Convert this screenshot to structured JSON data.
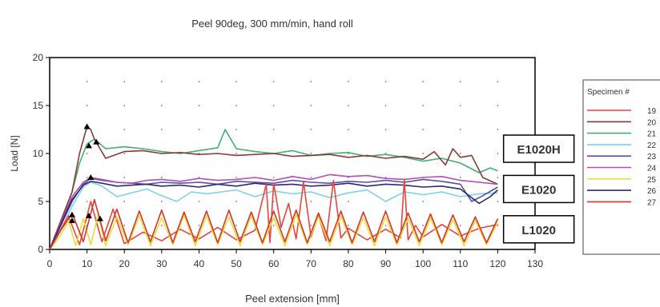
{
  "chart_data": {
    "type": "line",
    "title": "Peel 90deg, 300 mm/min, hand roll",
    "xlabel": "Peel extension [mm]",
    "ylabel": "Load [N]",
    "xlim": [
      0,
      130
    ],
    "ylim": [
      0,
      20
    ],
    "x_ticks": [
      "0",
      "10",
      "20",
      "30",
      "40",
      "50",
      "60",
      "70",
      "80",
      "90",
      "100",
      "110",
      "120",
      "130"
    ],
    "y_ticks": [
      "0",
      "5",
      "10",
      "15",
      "20"
    ],
    "grid": "dotted",
    "legend": {
      "title": "Specimen #",
      "placement": "right",
      "entries": [
        {
          "label": "19",
          "color": "#e8453c"
        },
        {
          "label": "20",
          "color": "#8b3a3a"
        },
        {
          "label": "21",
          "color": "#3cb371"
        },
        {
          "label": "22",
          "color": "#7fd3e6"
        },
        {
          "label": "23",
          "color": "#5a4fa8"
        },
        {
          "label": "24",
          "color": "#b24fb0"
        },
        {
          "label": "25",
          "color": "#e6df3a"
        },
        {
          "label": "26",
          "color": "#2e2a6e"
        },
        {
          "label": "27",
          "color": "#d7342c"
        }
      ]
    },
    "annotations": [
      {
        "text": "E1020H",
        "x": 131,
        "y": 10.5
      },
      {
        "text": "E1020",
        "x": 131,
        "y": 6.3
      },
      {
        "text": "L1020",
        "x": 131,
        "y": 2.1
      }
    ],
    "markers": [
      {
        "x": 10,
        "y": 12.8
      },
      {
        "x": 10.5,
        "y": 10.8
      },
      {
        "x": 12.5,
        "y": 11.2
      },
      {
        "x": 11,
        "y": 7.5
      },
      {
        "x": 6,
        "y": 3.6
      },
      {
        "x": 6,
        "y": 3.0
      },
      {
        "x": 10.5,
        "y": 3.5
      },
      {
        "x": 13.5,
        "y": 3.2
      }
    ],
    "series": [
      {
        "name": "21",
        "color": "#3cb371",
        "x": [
          0,
          3,
          6,
          8,
          10,
          12,
          15,
          20,
          25,
          30,
          35,
          40,
          45,
          47,
          50,
          55,
          60,
          65,
          70,
          75,
          80,
          85,
          90,
          95,
          100,
          105,
          110,
          115,
          118,
          120
        ],
        "y": [
          0,
          3,
          6,
          9,
          11,
          11.5,
          10.5,
          10.7,
          10.5,
          10.2,
          10.0,
          10.3,
          10.6,
          12.5,
          10.5,
          10.2,
          10.0,
          10.3,
          9.8,
          10.0,
          10.1,
          9.7,
          9.9,
          9.6,
          9.2,
          9.5,
          9.0,
          8.0,
          8.5,
          8.2
        ]
      },
      {
        "name": "20",
        "color": "#8b3a3a",
        "x": [
          0,
          3,
          6,
          8,
          10,
          11,
          12,
          15,
          20,
          25,
          30,
          35,
          40,
          45,
          50,
          55,
          60,
          65,
          70,
          75,
          80,
          85,
          90,
          95,
          100,
          103,
          106,
          108,
          110,
          113,
          116,
          120
        ],
        "y": [
          0,
          3,
          6,
          10,
          12.8,
          12.5,
          11.5,
          9.5,
          10.2,
          10.3,
          10.0,
          10.1,
          9.9,
          10.0,
          9.8,
          9.9,
          10.0,
          9.7,
          9.8,
          9.9,
          9.6,
          9.8,
          9.5,
          9.7,
          9.4,
          10.2,
          8.8,
          10.5,
          9.6,
          9.8,
          7.5,
          6.8
        ]
      },
      {
        "name": "22",
        "color": "#7fd3e6",
        "x": [
          0,
          3,
          6,
          9,
          11,
          14,
          18,
          22,
          26,
          30,
          34,
          38,
          42,
          46,
          50,
          55,
          60,
          65,
          70,
          75,
          80,
          85,
          90,
          95,
          100,
          105,
          110,
          115,
          120
        ],
        "y": [
          0,
          2,
          4.5,
          6.5,
          7.0,
          6.6,
          5.5,
          5.9,
          6.3,
          5.6,
          5.0,
          6.0,
          5.8,
          6.0,
          6.2,
          5.5,
          6.1,
          5.8,
          6.0,
          5.4,
          5.9,
          6.2,
          5.0,
          6.0,
          5.7,
          6.0,
          5.5,
          5.8,
          5.9
        ]
      },
      {
        "name": "23",
        "color": "#5a4fa8",
        "x": [
          0,
          3,
          6,
          9,
          11,
          14,
          18,
          22,
          26,
          30,
          35,
          40,
          45,
          50,
          55,
          60,
          65,
          70,
          75,
          80,
          85,
          90,
          95,
          100,
          105,
          110,
          113,
          116,
          120
        ],
        "y": [
          0,
          2.5,
          5,
          6.8,
          7.4,
          7.2,
          7.0,
          6.9,
          6.8,
          7.0,
          6.9,
          7.0,
          6.8,
          7.1,
          7.0,
          6.9,
          7.2,
          7.0,
          6.9,
          7.1,
          7.0,
          7.2,
          7.0,
          7.3,
          7.1,
          6.8,
          5.0,
          5.6,
          6.5
        ]
      },
      {
        "name": "24",
        "color": "#b24fb0",
        "x": [
          0,
          3,
          6,
          9,
          11,
          14,
          18,
          22,
          26,
          30,
          35,
          40,
          45,
          50,
          55,
          60,
          65,
          70,
          75,
          80,
          85,
          90,
          95,
          100,
          105,
          110,
          115,
          120
        ],
        "y": [
          0,
          2.8,
          5.5,
          7.0,
          7.5,
          7.3,
          7.0,
          6.9,
          7.2,
          7.3,
          7.1,
          7.4,
          7.2,
          7.3,
          7.5,
          7.2,
          7.6,
          7.3,
          7.8,
          7.6,
          7.7,
          7.4,
          7.3,
          7.5,
          7.6,
          7.2,
          7.0,
          6.8
        ]
      },
      {
        "name": "26",
        "color": "#2e2a6e",
        "x": [
          0,
          3,
          6,
          9,
          11,
          14,
          18,
          22,
          26,
          30,
          35,
          40,
          45,
          50,
          55,
          60,
          65,
          70,
          75,
          80,
          85,
          90,
          95,
          100,
          105,
          110,
          115,
          118,
          120
        ],
        "y": [
          0,
          2.6,
          5.2,
          6.7,
          7.1,
          6.9,
          6.6,
          6.7,
          6.8,
          6.6,
          6.7,
          6.5,
          6.8,
          6.6,
          6.9,
          6.7,
          6.8,
          6.6,
          6.7,
          6.9,
          6.6,
          6.8,
          6.7,
          6.5,
          6.6,
          6.3,
          4.8,
          5.5,
          6.2
        ]
      },
      {
        "name": "19",
        "color": "#e8453c",
        "x": [
          0,
          5,
          8,
          11,
          14,
          17,
          20,
          25,
          30,
          35,
          40,
          45,
          50,
          55,
          58,
          59,
          60,
          62,
          64,
          66,
          68,
          70,
          72,
          74,
          76,
          78,
          80,
          85,
          90,
          94,
          95,
          96,
          98,
          100,
          105,
          110,
          115,
          120
        ],
        "y": [
          0,
          3.5,
          0.5,
          5.0,
          0.8,
          4.2,
          0.6,
          1.8,
          0.9,
          2.1,
          1.1,
          2.3,
          1.0,
          2.0,
          6.8,
          0.7,
          6.9,
          2.3,
          4.8,
          1.1,
          7.0,
          1.3,
          3.5,
          0.9,
          7.2,
          1.2,
          2.2,
          1.0,
          2.1,
          1.2,
          7.3,
          1.0,
          2.5,
          1.3,
          2.6,
          1.4,
          2.2,
          2.6
        ]
      },
      {
        "name": "25",
        "color": "#e6df3a",
        "x": [
          0,
          3,
          5,
          7,
          9,
          11,
          13,
          15,
          18,
          21,
          24,
          27,
          30,
          33,
          36,
          39,
          42,
          45,
          48,
          51,
          54,
          57,
          60,
          63,
          66,
          69,
          72,
          75,
          78,
          81,
          84,
          87,
          90,
          93,
          96,
          99,
          102,
          105,
          108,
          111,
          114,
          117,
          120
        ],
        "y": [
          0,
          1.5,
          3.0,
          0.4,
          3.2,
          0.5,
          3.6,
          0.4,
          3.4,
          0.5,
          3.5,
          0.4,
          3.3,
          0.5,
          3.6,
          0.4,
          3.5,
          0.5,
          3.4,
          0.4,
          3.5,
          0.5,
          3.3,
          0.4,
          3.6,
          0.5,
          3.4,
          0.4,
          3.5,
          0.5,
          3.3,
          0.4,
          3.4,
          0.5,
          3.2,
          0.4,
          3.3,
          0.5,
          3.1,
          0.4,
          3.0,
          0.5,
          2.8
        ]
      },
      {
        "name": "27",
        "color": "#d7342c",
        "x": [
          0,
          3,
          6,
          9,
          12,
          15,
          18,
          21,
          24,
          27,
          30,
          33,
          36,
          39,
          42,
          45,
          48,
          51,
          54,
          57,
          60,
          63,
          66,
          69,
          72,
          75,
          78,
          81,
          84,
          87,
          90,
          93,
          96,
          99,
          102,
          105,
          108,
          111,
          114,
          117,
          120
        ],
        "y": [
          0,
          2.0,
          3.8,
          0.8,
          5.2,
          0.9,
          4.2,
          0.7,
          4.0,
          0.8,
          4.1,
          0.7,
          3.9,
          0.8,
          4.0,
          0.7,
          4.1,
          0.8,
          3.9,
          0.7,
          4.0,
          0.8,
          4.1,
          0.7,
          3.8,
          0.8,
          4.0,
          0.7,
          3.9,
          0.8,
          4.0,
          0.7,
          3.8,
          0.8,
          3.7,
          0.7,
          3.6,
          0.8,
          3.4,
          0.7,
          3.2
        ]
      }
    ]
  }
}
